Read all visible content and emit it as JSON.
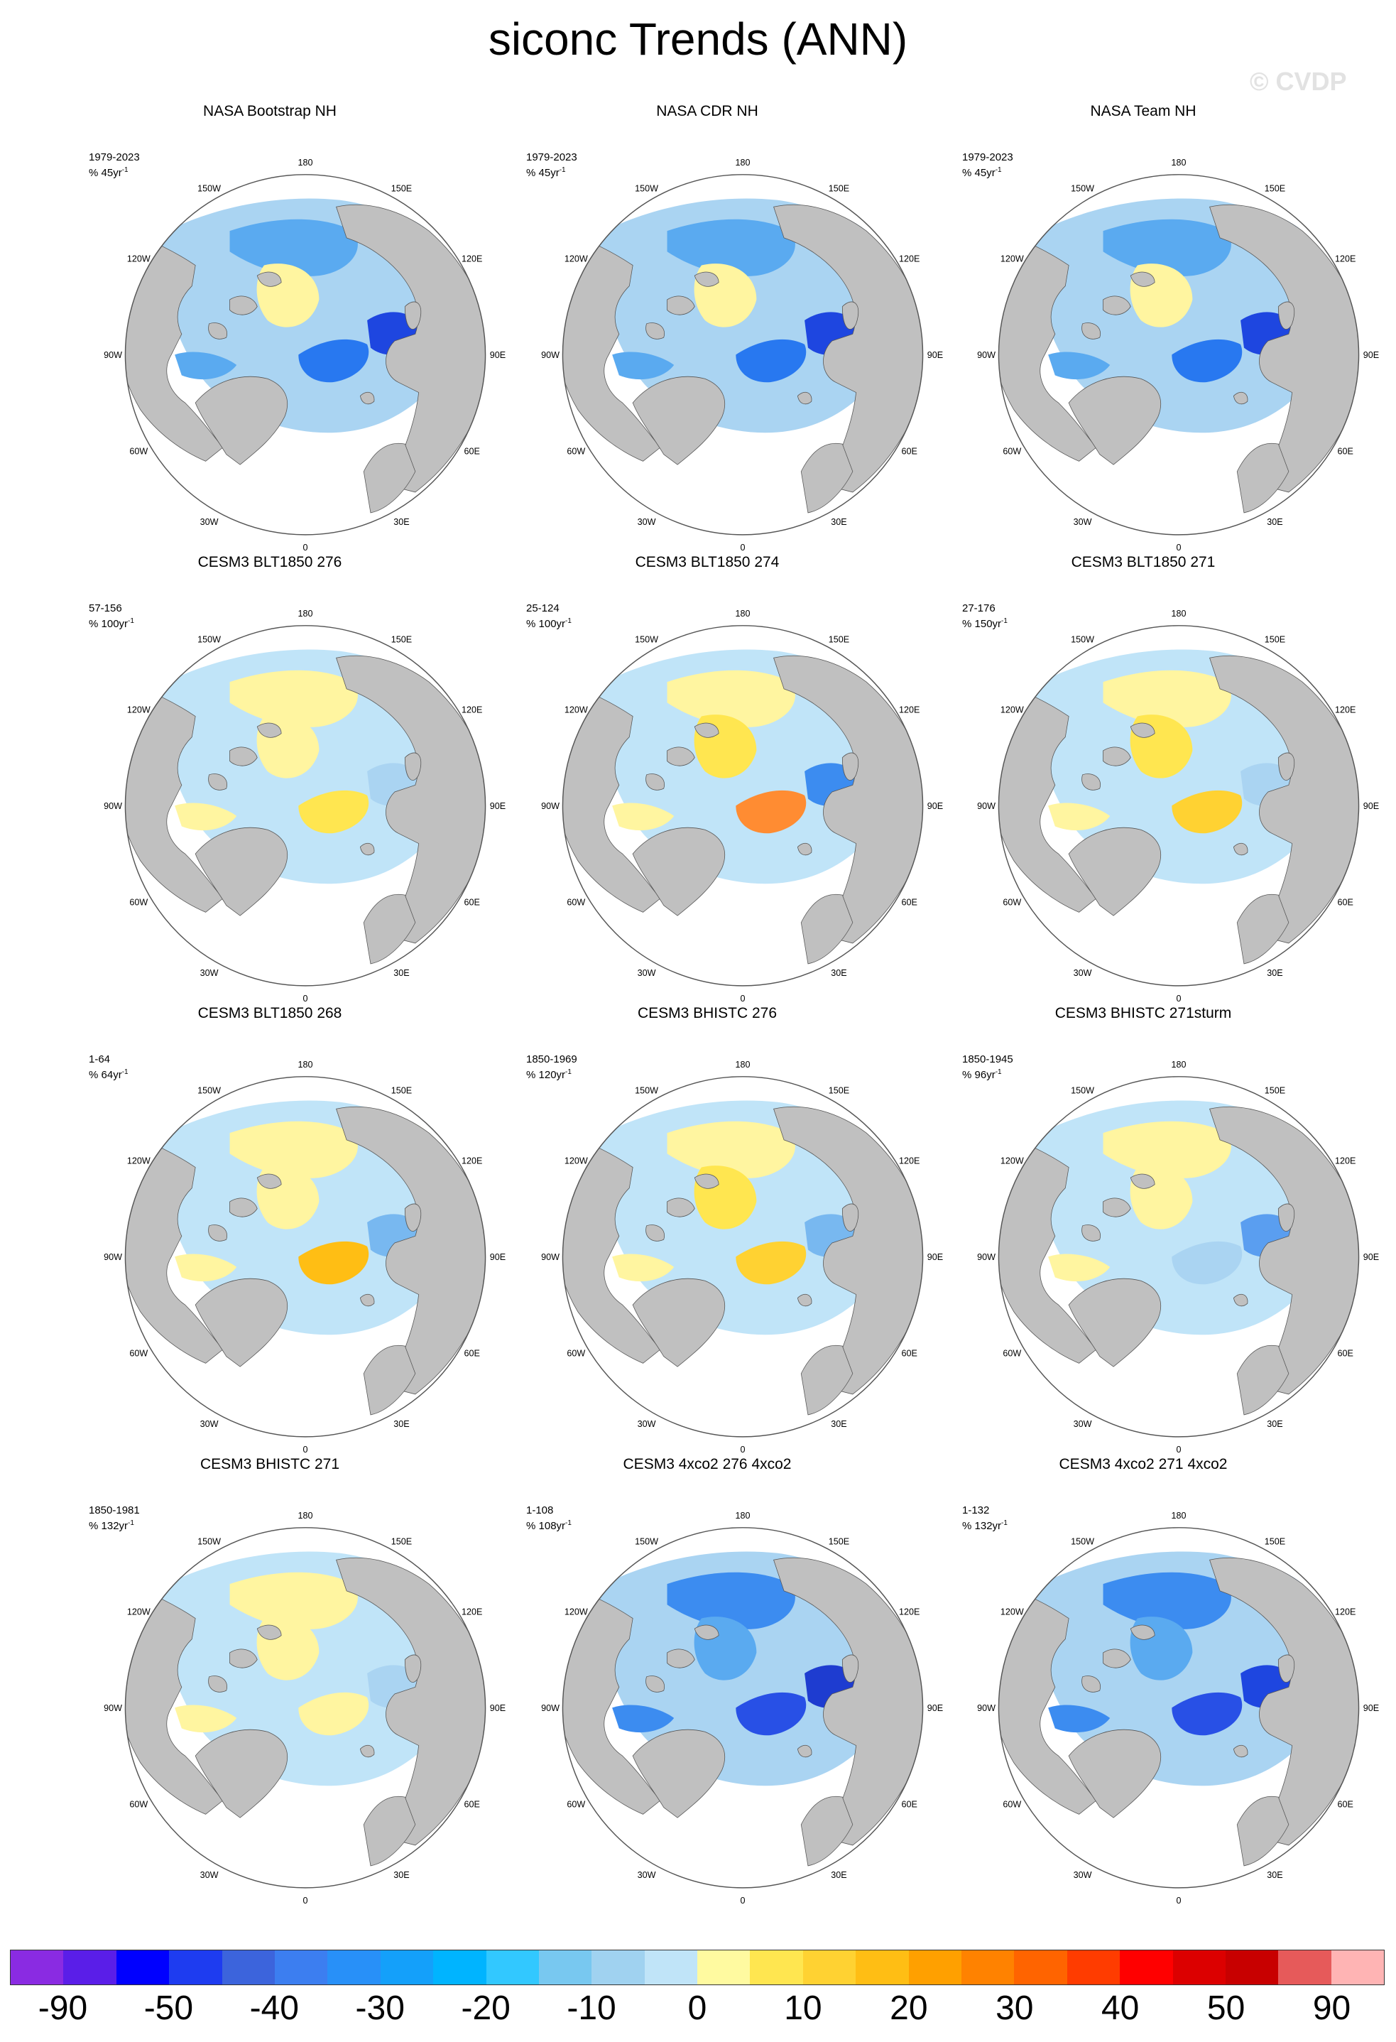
{
  "title": "siconc Trends (ANN)",
  "watermark": "© CVDP",
  "longitude_labels": {
    "lon180": "180",
    "lon150w": "150W",
    "lon150e": "150E",
    "lon120w": "120W",
    "lon120e": "120E",
    "lon90w": "90W",
    "lon90e": "90E",
    "lon60w": "60W",
    "lon60e": "60E",
    "lon30w": "30W",
    "lon30e": "30E",
    "lon0": "0"
  },
  "panels": [
    {
      "title": "NASA Bootstrap NH",
      "period": "1979-2023",
      "units": "% 45yr",
      "exp": "-1",
      "pattern": "obs",
      "scheme": "obs"
    },
    {
      "title": "NASA CDR NH",
      "period": "1979-2023",
      "units": "% 45yr",
      "exp": "-1",
      "pattern": "obs",
      "scheme": "obs"
    },
    {
      "title": "NASA Team NH",
      "period": "1979-2023",
      "units": "% 45yr",
      "exp": "-1",
      "pattern": "obs",
      "scheme": "obs"
    },
    {
      "title": "CESM3 BLT1850 276",
      "period": "57-156",
      "units": "% 100yr",
      "exp": "-1",
      "pattern": "mixed",
      "scheme": "a"
    },
    {
      "title": "CESM3 BLT1850 274",
      "period": "25-124",
      "units": "% 100yr",
      "exp": "-1",
      "pattern": "mixed",
      "scheme": "b"
    },
    {
      "title": "CESM3 BLT1850 271",
      "period": "27-176",
      "units": "% 150yr",
      "exp": "-1",
      "pattern": "mixed",
      "scheme": "c"
    },
    {
      "title": "CESM3 BLT1850 268",
      "period": "1-64",
      "units": "% 64yr",
      "exp": "-1",
      "pattern": "mixed",
      "scheme": "d"
    },
    {
      "title": "CESM3 BHISTC 276",
      "period": "1850-1969",
      "units": "% 120yr",
      "exp": "-1",
      "pattern": "mixed",
      "scheme": "e"
    },
    {
      "title": "CESM3 BHISTC 271sturm",
      "period": "1850-1945",
      "units": "% 96yr",
      "exp": "-1",
      "pattern": "mixed",
      "scheme": "f"
    },
    {
      "title": "CESM3 BHISTC 271",
      "period": "1850-1981",
      "units": "% 132yr",
      "exp": "-1",
      "pattern": "mixed",
      "scheme": "g"
    },
    {
      "title": "CESM3 4xco2 276 4xco2",
      "period": "1-108",
      "units": "% 108yr",
      "exp": "-1",
      "pattern": "decline",
      "scheme": "h"
    },
    {
      "title": "CESM3 4xco2 271 4xco2",
      "period": "1-132",
      "units": "% 132yr",
      "exp": "-1",
      "pattern": "decline",
      "scheme": "i"
    }
  ],
  "colorbar": {
    "colors": [
      "#8a2be2",
      "#5a1ee8",
      "#0000ff",
      "#1e3cf0",
      "#3c64dc",
      "#3c7ef0",
      "#2890f8",
      "#14a0fa",
      "#00b4ff",
      "#32c8ff",
      "#78c8f0",
      "#a0d2f0",
      "#c0e4f8",
      "#fffaa0",
      "#ffe650",
      "#ffd232",
      "#ffbe14",
      "#ffa000",
      "#ff8200",
      "#ff6400",
      "#ff3c00",
      "#ff0000",
      "#dc0000",
      "#c80000",
      "#e65a5a",
      "#ffb4b4"
    ],
    "labels": [
      "-90",
      "-50",
      "-40",
      "-30",
      "-20",
      "-10",
      "0",
      "10",
      "20",
      "30",
      "40",
      "50",
      "90"
    ]
  },
  "colors": {
    "land": "#c0c0c0",
    "ocean": "#ffffff",
    "decline_strong": "#2850e6",
    "decline_mid": "#3c8cf0",
    "decline_light": "#aad4f2",
    "increase_light": "#fff5a0",
    "increase_mid": "#ffd232",
    "increase_strong": "#ff6414"
  }
}
